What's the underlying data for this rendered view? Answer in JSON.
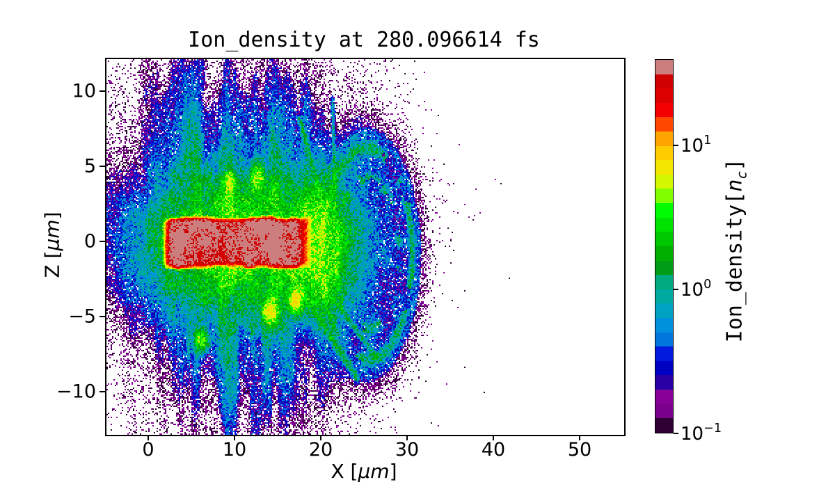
{
  "figure": {
    "background": "#ffffff"
  },
  "title": "Ion_density at 280.096614 fs",
  "axes": {
    "xlabel": {
      "prefix": "X [",
      "unit": "μm",
      "suffix": "]"
    },
    "ylabel": {
      "prefix": "Z [",
      "unit": "μm",
      "suffix": "]"
    },
    "x_ticks": [
      {
        "label": "0",
        "value": 0
      },
      {
        "label": "10",
        "value": 10
      },
      {
        "label": "20",
        "value": 20
      },
      {
        "label": "30",
        "value": 30
      },
      {
        "label": "40",
        "value": 40
      },
      {
        "label": "50",
        "value": 50
      }
    ],
    "z_ticks": [
      {
        "label": "10",
        "value": 10
      },
      {
        "label": "5",
        "value": 5
      },
      {
        "label": "0",
        "value": 0
      },
      {
        "label": "−5",
        "value": -5
      },
      {
        "label": "−10",
        "value": -10
      }
    ]
  },
  "colorbar": {
    "label": {
      "prefix": "Ion_density[",
      "symbol": "n",
      "subscript": "c",
      "suffix": "]"
    },
    "scale": "log",
    "ticks": [
      {
        "mantissa": "10",
        "exponent": "1",
        "value": 10
      },
      {
        "mantissa": "10",
        "exponent": "0",
        "value": 1
      },
      {
        "mantissa": "10",
        "exponent": "−1",
        "value": 0.1
      }
    ],
    "vmin": 0.1,
    "vmax": 39.81,
    "colormap": "nipy_spectral",
    "band_colors_bottom_to_top": [
      "#2e0034",
      "#7a008b",
      "#870098",
      "#2a00a5",
      "#0000c2",
      "#001bdd",
      "#0077dd",
      "#0091dd",
      "#00a2c2",
      "#00aaa0",
      "#00a97e",
      "#009c15",
      "#00ae00",
      "#00c800",
      "#00e200",
      "#00fc00",
      "#81ff00",
      "#d2f700",
      "#f2e600",
      "#ffcc00",
      "#ffa500",
      "#ff4700",
      "#f40000",
      "#dc0000",
      "#cf0000",
      "#cc7e7e"
    ]
  },
  "chart_data": {
    "type": "heatmap",
    "title": "Ion_density at 280.096614 fs",
    "time_fs": 280.096614,
    "xlabel": "X [μm]",
    "ylabel": "Z [μm]",
    "x_range": [
      -5,
      55
    ],
    "z_range": [
      -12.8,
      12.2
    ],
    "x_ticks": [
      0,
      10,
      20,
      30,
      40,
      50
    ],
    "z_ticks": [
      10,
      5,
      0,
      -5,
      -10
    ],
    "value_label": "Ion_density[n_c]",
    "value_scale": "log",
    "vmin": 0.1,
    "vmax": 39.81,
    "colormap": "nipy_spectral",
    "n_color_bands": 26,
    "masked_below_vmin": "white",
    "grid": false,
    "legend": "colorbar-right",
    "features": {
      "core_slab": {
        "x": [
          2.0,
          18.0
        ],
        "z": [
          -2.0,
          1.9
        ],
        "peak_density": 38,
        "note": "dense red/yellow target slab, few saturated rosy-gray pixels"
      },
      "green_halo": {
        "center": [
          10.5,
          0
        ],
        "rx": 6.5,
        "rz": 2.7,
        "density": 3.2
      },
      "front_blob": {
        "center": [
          19.4,
          -0.3
        ],
        "rx": 2.1,
        "rz": 2.4,
        "density": 2.6
      },
      "plume_field": {
        "x_center": 9.5,
        "x_sigma": 6.0,
        "z_sigma": 8.0,
        "density": 1.6,
        "note": "vertical teal-green filaments above and below slab reaching plot edges"
      },
      "blue_field": {
        "x_center": 10.5,
        "x_sigma": 7.5,
        "z_sigma": 6.5,
        "density": 0.55,
        "note": "noisy cyan-blue cloud with sparse purple speckle fringe"
      },
      "bubble": {
        "center": [
          25.2,
          -0.8
        ],
        "rx": 6.4,
        "rz": 8.6,
        "density": 0.3,
        "note": "speckled blue-purple expansion shell with faint cyan arcs, sparse dots to x≈34"
      },
      "hotspots": [
        [
          14.0,
          -4.6,
          0.55,
          6
        ],
        [
          16.9,
          -3.9,
          0.5,
          7
        ],
        [
          9.3,
          4.0,
          0.45,
          4
        ],
        [
          12.5,
          4.4,
          0.5,
          4
        ],
        [
          6.0,
          -6.5,
          0.5,
          3
        ]
      ],
      "streaks": [
        [
          16.5,
          -2.2,
          24.0,
          -9.0,
          0.2,
          1.0
        ],
        [
          18.6,
          -1.6,
          26.2,
          -7.6,
          0.16,
          0.8
        ],
        [
          20.6,
          1.6,
          17.4,
          8.2,
          0.16,
          0.8
        ],
        [
          21.6,
          2.0,
          21.2,
          9.5,
          0.14,
          0.7
        ]
      ]
    }
  }
}
